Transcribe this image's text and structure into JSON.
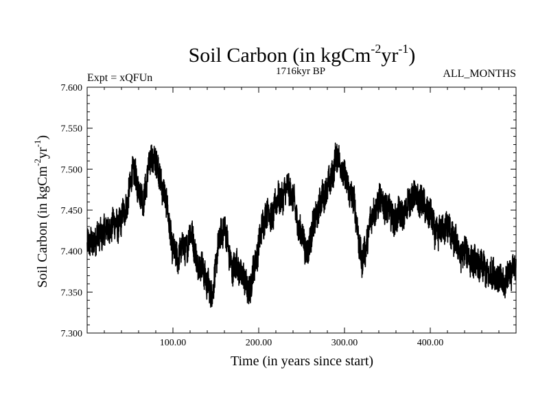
{
  "chart_data": {
    "type": "line",
    "title": "Soil Carbon (in kgCm",
    "title_sup1": "-2",
    "title_mid": "yr",
    "title_sup2": "-1",
    "title_end": ")",
    "subtitle_left": "Expt = xQFUn",
    "subtitle_center": "1716kyr BP",
    "subtitle_right": "ALL_MONTHS",
    "xlabel": "Time (in years since start)",
    "ylabel": "Soil Carbon (in kgCm",
    "ylabel_sup1": "-2",
    "ylabel_mid": "yr",
    "ylabel_sup2": "-1",
    "ylabel_end": ")",
    "xlim": [
      0,
      500
    ],
    "ylim": [
      7.3,
      7.6
    ],
    "x_ticks": [
      100,
      200,
      300,
      400
    ],
    "x_tick_labels": [
      "100.00",
      "200.00",
      "300.00",
      "400.00"
    ],
    "y_ticks": [
      7.3,
      7.35,
      7.4,
      7.45,
      7.5,
      7.55,
      7.6
    ],
    "y_tick_labels": [
      "7.300",
      "7.350",
      "7.400",
      "7.450",
      "7.500",
      "7.550",
      "7.600"
    ],
    "noise_amplitude": 0.018,
    "series": [
      {
        "name": "Soil Carbon",
        "color": "#000000",
        "x": [
          0,
          5,
          10,
          15,
          20,
          25,
          30,
          35,
          40,
          45,
          50,
          55,
          60,
          65,
          70,
          75,
          80,
          85,
          90,
          95,
          100,
          105,
          110,
          115,
          120,
          125,
          130,
          135,
          140,
          145,
          150,
          155,
          160,
          165,
          170,
          175,
          180,
          185,
          190,
          195,
          200,
          205,
          210,
          215,
          220,
          225,
          230,
          235,
          240,
          245,
          250,
          255,
          260,
          265,
          270,
          275,
          280,
          285,
          290,
          295,
          300,
          305,
          310,
          315,
          320,
          325,
          330,
          335,
          340,
          345,
          350,
          355,
          360,
          365,
          370,
          375,
          380,
          385,
          390,
          395,
          400,
          405,
          410,
          415,
          420,
          425,
          430,
          435,
          440,
          445,
          450,
          455,
          460,
          465,
          470,
          475,
          480,
          485,
          490,
          495,
          500
        ],
        "values": [
          7.405,
          7.41,
          7.415,
          7.42,
          7.425,
          7.425,
          7.435,
          7.43,
          7.44,
          7.45,
          7.48,
          7.5,
          7.475,
          7.46,
          7.49,
          7.515,
          7.51,
          7.49,
          7.47,
          7.44,
          7.4,
          7.39,
          7.405,
          7.4,
          7.425,
          7.405,
          7.38,
          7.38,
          7.36,
          7.345,
          7.38,
          7.42,
          7.43,
          7.4,
          7.375,
          7.385,
          7.37,
          7.36,
          7.35,
          7.385,
          7.405,
          7.435,
          7.45,
          7.44,
          7.46,
          7.465,
          7.47,
          7.48,
          7.465,
          7.435,
          7.42,
          7.4,
          7.41,
          7.44,
          7.45,
          7.47,
          7.475,
          7.49,
          7.515,
          7.51,
          7.49,
          7.475,
          7.465,
          7.43,
          7.385,
          7.405,
          7.435,
          7.45,
          7.46,
          7.46,
          7.45,
          7.445,
          7.435,
          7.45,
          7.44,
          7.465,
          7.465,
          7.465,
          7.46,
          7.45,
          7.445,
          7.425,
          7.42,
          7.43,
          7.43,
          7.42,
          7.41,
          7.395,
          7.4,
          7.395,
          7.385,
          7.385,
          7.38,
          7.375,
          7.37,
          7.375,
          7.365,
          7.36,
          7.37,
          7.375,
          7.385
        ]
      }
    ]
  }
}
